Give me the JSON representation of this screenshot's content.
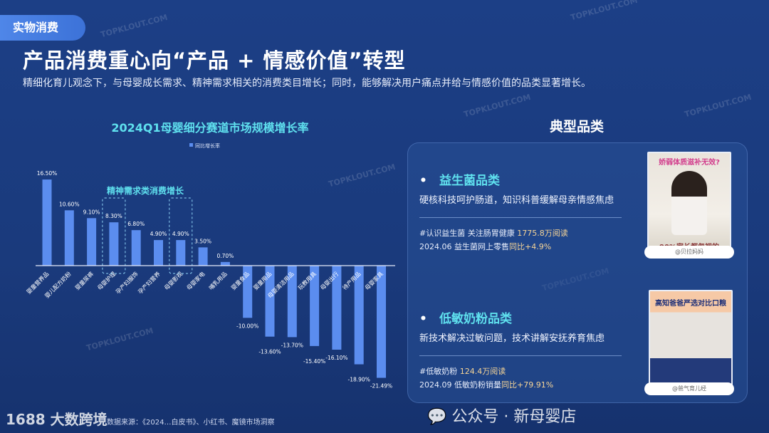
{
  "header": {
    "tag": "实物消费",
    "title": "产品消费重心向“产品 + 情感价值”转型",
    "subtitle": "精细化育儿观念下，与母婴成长需求、精神需求相关的消费类目增长；同时，能够解决用户痛点并给与情感价值的品类显著增长。"
  },
  "chart_data": {
    "type": "bar",
    "title": "2024Q1母婴细分赛道市场规模增长率",
    "legend": [
      "同比增长率"
    ],
    "annotation": "精神需求类消费增长",
    "categories": [
      "婴童营养品",
      "婴儿配方奶粉",
      "婴童尿裤",
      "母婴护理",
      "孕产妇服饰",
      "孕产妇营养",
      "母婴影视",
      "母婴家电",
      "哺乳用品",
      "婴童食品",
      "婴童用品",
      "母婴清洁用品",
      "玩教用具",
      "母婴出行",
      "待产用品",
      "母婴家具"
    ],
    "values": [
      16.5,
      10.6,
      9.1,
      8.3,
      6.8,
      4.9,
      4.9,
      3.5,
      0.7,
      -10.0,
      -13.6,
      -13.7,
      -15.4,
      -16.1,
      -18.9,
      -21.49
    ],
    "labels": [
      "16.50%",
      "10.60%",
      "9.10%",
      "8.30%",
      "6.80%",
      "4.90%",
      "4.90%",
      "3.50%",
      "0.70%",
      "-10.00%",
      "-13.60%",
      "-13.70%",
      "-15.40%",
      "-16.10%",
      "-18.90%",
      "-21.49%"
    ],
    "highlighted": [
      "母婴护理",
      "母婴影视"
    ],
    "bar_color": "#5b8def"
  },
  "source": "数据来源：《2024…白皮书》、小红书、魔镜市场洞察",
  "logo": "1688 大数跨境",
  "panel": {
    "title": "典型品类",
    "items": [
      {
        "name": "益生菌品类",
        "desc": "硬核科技呵护肠道，知识科普缓解母亲情感焦虑",
        "stat1_a": "#认识益生菌 关注肠胃健康 ",
        "stat1_b": "1775.8万阅读",
        "stat2_a": "2024.06 益生菌网上零售",
        "stat2_b": "同比+4.9%",
        "thumb_top": "娇弱体质滋补无效?",
        "thumb_bottom": "90%家长都忽视的",
        "handle": "@贝拉妈妈"
      },
      {
        "name": "低敏奶粉品类",
        "desc": "新技术解决过敏问题，技术讲解安抚养育焦虑",
        "stat1_a": "#低敏奶粉 ",
        "stat1_b": "124.4万阅读",
        "stat2_a": "2024.09 低敏奶粉销量",
        "stat2_b": "同比+79.91%",
        "thumb_top": "高知爸爸严选对比口粮",
        "thumb_bottom": "",
        "handle": "@爸气育儿经"
      }
    ]
  },
  "watermark": "TOPKLOUT.COM",
  "wechat": "公众号 · 新母婴店"
}
